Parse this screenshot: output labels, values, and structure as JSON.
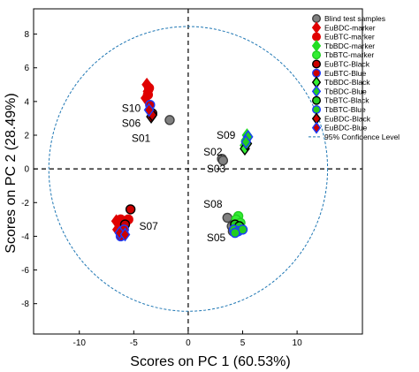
{
  "chart_data": {
    "type": "scatter",
    "xlabel": "Scores on PC 1 (60.53%)",
    "ylabel": "Scores on PC 2 (28.49%)",
    "xlim": [
      -14.2,
      16
    ],
    "ylim": [
      -9.8,
      9.5
    ],
    "xticks": [
      -10,
      -5,
      0,
      5,
      10
    ],
    "yticks": [
      -8,
      -6,
      -4,
      -2,
      0,
      2,
      4,
      6,
      8
    ],
    "grid": false,
    "crosshair_dashed_at_zero": true,
    "confidence_ellipse": {
      "name": "95% Confidence Level",
      "center": [
        0,
        0
      ],
      "rx": 12.8,
      "ry": 8.45,
      "color": "#1f77b4"
    },
    "legend_position": "top-right",
    "series": [
      {
        "name": "Blind test samples",
        "marker": "circle",
        "fill": "#808080",
        "stroke": "#404040",
        "points": [
          [
            -1.7,
            2.9
          ],
          [
            3.1,
            0.6
          ],
          [
            3.2,
            0.5
          ],
          [
            3.6,
            -2.9
          ],
          [
            4.0,
            -3.4
          ],
          [
            4.1,
            -3.7
          ],
          [
            -6.4,
            -3.2
          ],
          [
            -6.1,
            -3.6
          ]
        ]
      },
      {
        "name": "EuBDC-marker",
        "marker": "diamond",
        "fill": "#e00000",
        "stroke": "#e00000",
        "points": [
          [
            -3.8,
            5.0
          ],
          [
            -3.7,
            4.6
          ],
          [
            -3.9,
            4.2
          ],
          [
            -6.6,
            -3.1
          ],
          [
            -6.3,
            -3.5
          ],
          [
            -6.5,
            -3.6
          ]
        ]
      },
      {
        "name": "EuBTC-marker",
        "marker": "circle",
        "fill": "#e00000",
        "stroke": "#e00000",
        "points": [
          [
            -3.6,
            4.8
          ],
          [
            -3.7,
            4.4
          ],
          [
            -6.2,
            -3.0
          ],
          [
            -6.3,
            -3.3
          ],
          [
            -6.0,
            -3.9
          ],
          [
            -5.5,
            -3.0
          ]
        ]
      },
      {
        "name": "TbBDC-marker",
        "marker": "diamond",
        "fill": "#22dd22",
        "stroke": "#22dd22",
        "points": [
          [
            5.4,
            2.0
          ],
          [
            5.3,
            1.7
          ],
          [
            5.2,
            1.4
          ]
        ]
      },
      {
        "name": "TbBTC-marker",
        "marker": "circle",
        "fill": "#33ee33",
        "stroke": "#22cc22",
        "points": [
          [
            4.6,
            -2.8
          ],
          [
            4.4,
            -3.0
          ],
          [
            4.8,
            -3.2
          ],
          [
            4.5,
            -3.5
          ]
        ]
      },
      {
        "name": "EuBTC-Black",
        "marker": "circle",
        "fill": "#cc0000",
        "stroke": "#000000",
        "points": [
          [
            -3.3,
            3.3
          ],
          [
            -5.3,
            -2.4
          ],
          [
            -5.8,
            -3.3
          ]
        ]
      },
      {
        "name": "EuBTC-Blue",
        "marker": "circle",
        "fill": "#cc0000",
        "stroke": "#1a3cff",
        "points": [
          [
            -6.2,
            -4.0
          ],
          [
            -5.9,
            -3.6
          ],
          [
            -3.5,
            3.8
          ]
        ]
      },
      {
        "name": "TbBDC-Black",
        "marker": "diamond",
        "fill": "#33ee33",
        "stroke": "#000000",
        "points": [
          [
            5.2,
            1.2
          ],
          [
            5.4,
            1.5
          ]
        ]
      },
      {
        "name": "TbBDC-Blue",
        "marker": "diamond",
        "fill": "#22cc22",
        "stroke": "#1a3cff",
        "points": [
          [
            5.5,
            1.9
          ],
          [
            5.3,
            1.6
          ]
        ]
      },
      {
        "name": "TbBTC-Black",
        "marker": "circle",
        "fill": "#22cc22",
        "stroke": "#000000",
        "points": [
          [
            4.3,
            -3.3
          ],
          [
            4.7,
            -3.4
          ]
        ]
      },
      {
        "name": "TbBTC-Blue",
        "marker": "circle",
        "fill": "#22cc22",
        "stroke": "#1a3cff",
        "points": [
          [
            4.2,
            -3.6
          ],
          [
            4.6,
            -3.7
          ],
          [
            5.0,
            -3.6
          ],
          [
            4.3,
            -3.8
          ]
        ]
      },
      {
        "name": "EuBDC-Black",
        "marker": "diamond",
        "fill": "#cc0000",
        "stroke": "#000000",
        "points": [
          [
            -3.4,
            3.1
          ],
          [
            -3.3,
            3.2
          ]
        ]
      },
      {
        "name": "EuBDC-Blue",
        "marker": "diamond",
        "fill": "#cc0000",
        "stroke": "#1a3cff",
        "points": [
          [
            -3.6,
            3.5
          ],
          [
            -6.3,
            -3.8
          ],
          [
            -5.8,
            -3.9
          ]
        ]
      }
    ],
    "annotations": [
      {
        "text": "S10",
        "x": -6.1,
        "y": 3.4
      },
      {
        "text": "S06",
        "x": -6.1,
        "y": 2.5
      },
      {
        "text": "S01",
        "x": -5.2,
        "y": 1.6
      },
      {
        "text": "S09",
        "x": 2.6,
        "y": 1.8
      },
      {
        "text": "S02",
        "x": 1.4,
        "y": 0.8
      },
      {
        "text": "S03",
        "x": 1.7,
        "y": -0.2
      },
      {
        "text": "S07",
        "x": -4.5,
        "y": -3.6
      },
      {
        "text": "S08",
        "x": 1.4,
        "y": -2.3
      },
      {
        "text": "S05",
        "x": 1.7,
        "y": -4.3
      }
    ]
  }
}
